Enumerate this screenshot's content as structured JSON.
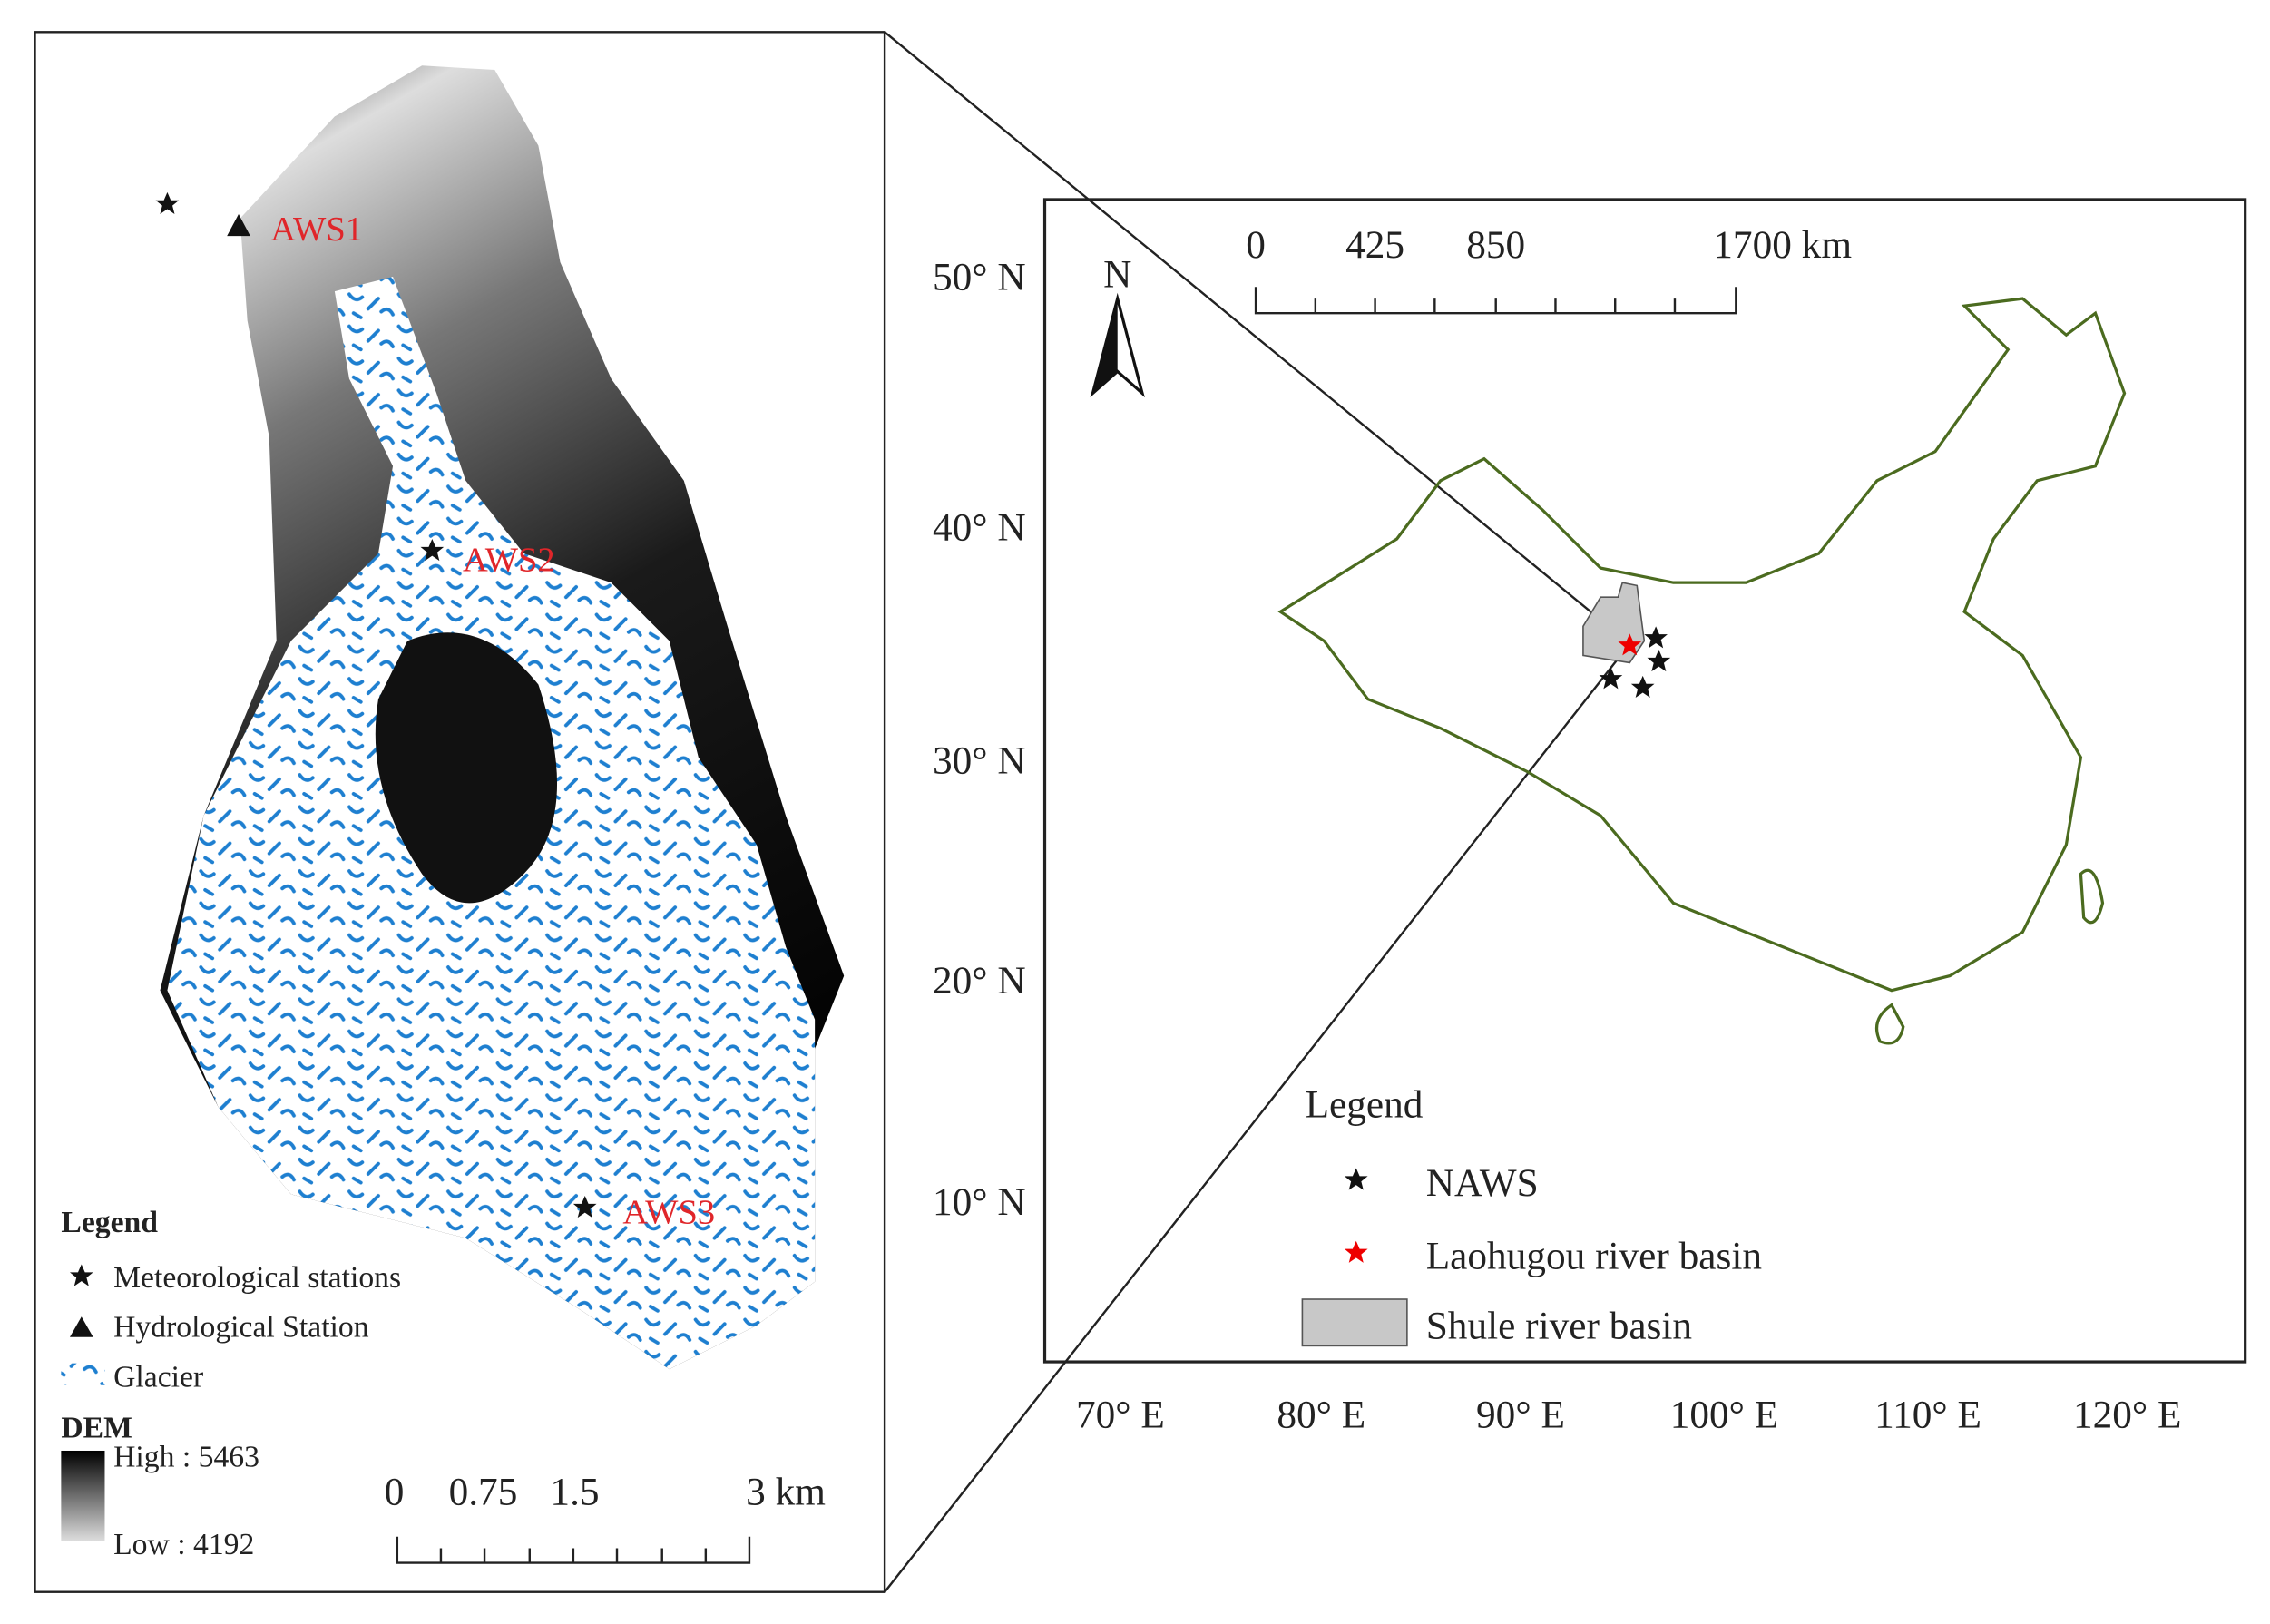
{
  "left_map": {
    "stations": [
      "AWS1",
      "AWS2",
      "AWS3"
    ],
    "legend": {
      "title": "Legend",
      "items": [
        "Meteorological stations",
        "Hydrological Station",
        "Glacier"
      ],
      "dem_title": "DEM",
      "high": "High : 5463",
      "low": "Low : 4192"
    },
    "scale_labels": [
      "0",
      "0.75",
      "1.5",
      "3 km"
    ]
  },
  "right_map": {
    "lat_labels": [
      "50° N",
      "40° N",
      "30° N",
      "20° N",
      "10° N"
    ],
    "lon_labels": [
      "70° E",
      "80° E",
      "90° E",
      "100° E",
      "110° E",
      "120° E"
    ],
    "scale_labels": [
      "0",
      "425",
      "850",
      "1700 km"
    ],
    "north": "N",
    "legend": {
      "title": "Legend",
      "items": [
        "NAWS",
        "Laohugou river basin",
        "Shule river basin"
      ]
    }
  }
}
